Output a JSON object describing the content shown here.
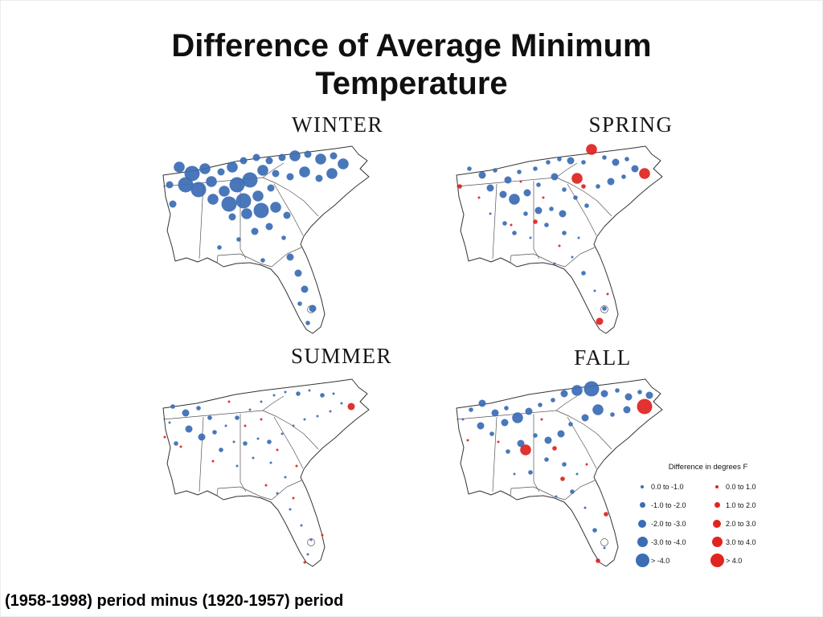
{
  "slide": {
    "title_line1": "Difference of Average Minimum",
    "title_line2": "Temperature",
    "caption": "(1958-1998) period minus (1920-1957) period"
  },
  "colors": {
    "negative_blue": "#3B6DB5",
    "positive_red": "#E02420",
    "map_outline": "#333333"
  },
  "legend": {
    "title": "Difference in degrees F",
    "negative_labels": [
      "0.0 to -1.0",
      "-1.0 to -2.0",
      "-2.0 to -3.0",
      "-3.0 to -4.0",
      "> -4.0"
    ],
    "positive_labels": [
      "0.0 to 1.0",
      "1.0 to 2.0",
      "2.0 to 3.0",
      "3.0 to 4.0",
      "> 4.0"
    ]
  },
  "chart_data": {
    "type": "scatter",
    "title": "Difference of Average Minimum Temperature",
    "units": "degrees F",
    "note": "(1958-1998) period minus (1920-1957) period",
    "point_format": "[x, y, size_bucket_1to5, color: b=negative(blue) r=positive(red)]",
    "panels": [
      {
        "id": "winter",
        "label": "WINTER",
        "points": [
          [
            48,
            38,
            4,
            "b"
          ],
          [
            64,
            46,
            5,
            "b"
          ],
          [
            80,
            40,
            4,
            "b"
          ],
          [
            56,
            60,
            5,
            "b"
          ],
          [
            72,
            66,
            5,
            "b"
          ],
          [
            88,
            56,
            4,
            "b"
          ],
          [
            100,
            44,
            3,
            "b"
          ],
          [
            114,
            38,
            4,
            "b"
          ],
          [
            128,
            30,
            3,
            "b"
          ],
          [
            144,
            26,
            3,
            "b"
          ],
          [
            160,
            30,
            3,
            "b"
          ],
          [
            176,
            26,
            3,
            "b"
          ],
          [
            192,
            24,
            4,
            "b"
          ],
          [
            208,
            22,
            3,
            "b"
          ],
          [
            224,
            28,
            4,
            "b"
          ],
          [
            240,
            24,
            3,
            "b"
          ],
          [
            252,
            34,
            4,
            "b"
          ],
          [
            238,
            46,
            4,
            "b"
          ],
          [
            222,
            52,
            3,
            "b"
          ],
          [
            204,
            44,
            4,
            "b"
          ],
          [
            186,
            50,
            3,
            "b"
          ],
          [
            168,
            46,
            3,
            "b"
          ],
          [
            152,
            42,
            4,
            "b"
          ],
          [
            136,
            54,
            5,
            "b"
          ],
          [
            120,
            60,
            5,
            "b"
          ],
          [
            104,
            68,
            4,
            "b"
          ],
          [
            90,
            78,
            4,
            "b"
          ],
          [
            110,
            84,
            5,
            "b"
          ],
          [
            128,
            80,
            5,
            "b"
          ],
          [
            146,
            74,
            4,
            "b"
          ],
          [
            162,
            64,
            3,
            "b"
          ],
          [
            150,
            92,
            5,
            "b"
          ],
          [
            132,
            96,
            4,
            "b"
          ],
          [
            114,
            100,
            3,
            "b"
          ],
          [
            168,
            88,
            4,
            "b"
          ],
          [
            182,
            98,
            3,
            "b"
          ],
          [
            160,
            112,
            3,
            "b"
          ],
          [
            142,
            118,
            3,
            "b"
          ],
          [
            122,
            128,
            2,
            "b"
          ],
          [
            178,
            126,
            2,
            "b"
          ],
          [
            186,
            150,
            3,
            "b"
          ],
          [
            196,
            170,
            3,
            "b"
          ],
          [
            204,
            190,
            3,
            "b"
          ],
          [
            198,
            208,
            2,
            "b"
          ],
          [
            214,
            214,
            3,
            "b"
          ],
          [
            208,
            232,
            2,
            "b"
          ],
          [
            152,
            154,
            2,
            "b"
          ],
          [
            98,
            138,
            2,
            "b"
          ],
          [
            40,
            84,
            3,
            "b"
          ],
          [
            36,
            60,
            3,
            "b"
          ]
        ]
      },
      {
        "id": "spring",
        "label": "SPRING",
        "points": [
          [
            44,
            40,
            2,
            "b"
          ],
          [
            60,
            48,
            3,
            "b"
          ],
          [
            76,
            42,
            2,
            "b"
          ],
          [
            92,
            54,
            3,
            "b"
          ],
          [
            106,
            44,
            2,
            "b"
          ],
          [
            70,
            64,
            3,
            "b"
          ],
          [
            86,
            72,
            3,
            "b"
          ],
          [
            100,
            78,
            4,
            "b"
          ],
          [
            116,
            70,
            3,
            "b"
          ],
          [
            130,
            60,
            2,
            "b"
          ],
          [
            126,
            40,
            2,
            "b"
          ],
          [
            142,
            32,
            2,
            "b"
          ],
          [
            156,
            28,
            2,
            "b"
          ],
          [
            170,
            30,
            3,
            "b"
          ],
          [
            186,
            32,
            2,
            "b"
          ],
          [
            212,
            26,
            2,
            "b"
          ],
          [
            226,
            32,
            3,
            "b"
          ],
          [
            240,
            28,
            2,
            "b"
          ],
          [
            250,
            40,
            3,
            "b"
          ],
          [
            236,
            50,
            2,
            "b"
          ],
          [
            220,
            56,
            3,
            "b"
          ],
          [
            204,
            62,
            2,
            "b"
          ],
          [
            150,
            50,
            3,
            "b"
          ],
          [
            162,
            66,
            2,
            "b"
          ],
          [
            176,
            76,
            2,
            "b"
          ],
          [
            190,
            86,
            2,
            "b"
          ],
          [
            160,
            96,
            3,
            "b"
          ],
          [
            146,
            90,
            2,
            "b"
          ],
          [
            130,
            92,
            3,
            "b"
          ],
          [
            114,
            96,
            2,
            "b"
          ],
          [
            140,
            110,
            2,
            "b"
          ],
          [
            162,
            120,
            2,
            "b"
          ],
          [
            180,
            126,
            1,
            "b"
          ],
          [
            120,
            126,
            1,
            "b"
          ],
          [
            100,
            120,
            2,
            "b"
          ],
          [
            172,
            150,
            1,
            "b"
          ],
          [
            186,
            170,
            2,
            "b"
          ],
          [
            200,
            192,
            1,
            "b"
          ],
          [
            212,
            214,
            2,
            "b"
          ],
          [
            150,
            158,
            1,
            "b"
          ],
          [
            88,
            108,
            2,
            "b"
          ],
          [
            70,
            96,
            1,
            "b"
          ],
          [
            196,
            16,
            4,
            "r"
          ],
          [
            178,
            52,
            4,
            "r"
          ],
          [
            186,
            62,
            2,
            "r"
          ],
          [
            262,
            46,
            4,
            "r"
          ],
          [
            32,
            62,
            2,
            "r"
          ],
          [
            56,
            76,
            1,
            "r"
          ],
          [
            96,
            110,
            1,
            "r"
          ],
          [
            126,
            106,
            2,
            "r"
          ],
          [
            156,
            136,
            1,
            "r"
          ],
          [
            206,
            230,
            3,
            "r"
          ],
          [
            216,
            196,
            1,
            "r"
          ],
          [
            136,
            76,
            1,
            "r"
          ],
          [
            108,
            56,
            1,
            "r"
          ]
        ]
      },
      {
        "id": "summer",
        "label": "SUMMER",
        "points": [
          [
            40,
            46,
            2,
            "b"
          ],
          [
            56,
            54,
            3,
            "b"
          ],
          [
            72,
            48,
            2,
            "b"
          ],
          [
            86,
            60,
            2,
            "b"
          ],
          [
            60,
            74,
            3,
            "b"
          ],
          [
            76,
            84,
            3,
            "b"
          ],
          [
            92,
            78,
            2,
            "b"
          ],
          [
            106,
            70,
            1,
            "b"
          ],
          [
            120,
            60,
            2,
            "b"
          ],
          [
            136,
            50,
            1,
            "b"
          ],
          [
            150,
            40,
            1,
            "b"
          ],
          [
            166,
            32,
            1,
            "b"
          ],
          [
            180,
            28,
            1,
            "b"
          ],
          [
            196,
            30,
            2,
            "b"
          ],
          [
            210,
            26,
            1,
            "b"
          ],
          [
            226,
            32,
            2,
            "b"
          ],
          [
            240,
            30,
            1,
            "b"
          ],
          [
            250,
            42,
            1,
            "b"
          ],
          [
            236,
            52,
            1,
            "b"
          ],
          [
            220,
            58,
            1,
            "b"
          ],
          [
            204,
            62,
            1,
            "b"
          ],
          [
            190,
            70,
            1,
            "b"
          ],
          [
            176,
            80,
            1,
            "b"
          ],
          [
            160,
            90,
            2,
            "b"
          ],
          [
            146,
            86,
            1,
            "b"
          ],
          [
            130,
            92,
            2,
            "b"
          ],
          [
            116,
            90,
            1,
            "b"
          ],
          [
            100,
            100,
            2,
            "b"
          ],
          [
            140,
            110,
            1,
            "b"
          ],
          [
            162,
            116,
            1,
            "b"
          ],
          [
            120,
            120,
            1,
            "b"
          ],
          [
            180,
            134,
            1,
            "b"
          ],
          [
            170,
            154,
            1,
            "b"
          ],
          [
            186,
            174,
            1,
            "b"
          ],
          [
            200,
            194,
            1,
            "b"
          ],
          [
            212,
            212,
            1,
            "b"
          ],
          [
            208,
            230,
            1,
            "b"
          ],
          [
            44,
            92,
            2,
            "b"
          ],
          [
            36,
            66,
            1,
            "b"
          ],
          [
            262,
            46,
            3,
            "r"
          ],
          [
            30,
            84,
            1,
            "r"
          ],
          [
            50,
            96,
            1,
            "r"
          ],
          [
            90,
            114,
            1,
            "r"
          ],
          [
            130,
            70,
            1,
            "r"
          ],
          [
            150,
            62,
            1,
            "r"
          ],
          [
            170,
            100,
            1,
            "r"
          ],
          [
            194,
            120,
            1,
            "r"
          ],
          [
            156,
            144,
            1,
            "r"
          ],
          [
            190,
            160,
            1,
            "r"
          ],
          [
            204,
            240,
            1,
            "r"
          ],
          [
            110,
            40,
            1,
            "r"
          ],
          [
            226,
            206,
            1,
            "r"
          ]
        ]
      },
      {
        "id": "fall",
        "label": "FALL",
        "points": [
          [
            46,
            50,
            2,
            "b"
          ],
          [
            60,
            42,
            3,
            "b"
          ],
          [
            76,
            54,
            3,
            "b"
          ],
          [
            90,
            48,
            2,
            "b"
          ],
          [
            58,
            70,
            3,
            "b"
          ],
          [
            72,
            80,
            2,
            "b"
          ],
          [
            88,
            66,
            3,
            "b"
          ],
          [
            104,
            60,
            4,
            "b"
          ],
          [
            118,
            52,
            3,
            "b"
          ],
          [
            132,
            44,
            2,
            "b"
          ],
          [
            148,
            38,
            2,
            "b"
          ],
          [
            162,
            30,
            3,
            "b"
          ],
          [
            178,
            26,
            4,
            "b"
          ],
          [
            196,
            24,
            5,
            "b"
          ],
          [
            212,
            30,
            3,
            "b"
          ],
          [
            228,
            26,
            2,
            "b"
          ],
          [
            242,
            34,
            3,
            "b"
          ],
          [
            256,
            28,
            2,
            "b"
          ],
          [
            268,
            32,
            3,
            "b"
          ],
          [
            240,
            50,
            3,
            "b"
          ],
          [
            222,
            56,
            2,
            "b"
          ],
          [
            204,
            50,
            4,
            "b"
          ],
          [
            188,
            60,
            3,
            "b"
          ],
          [
            170,
            68,
            2,
            "b"
          ],
          [
            158,
            80,
            3,
            "b"
          ],
          [
            142,
            88,
            3,
            "b"
          ],
          [
            126,
            82,
            2,
            "b"
          ],
          [
            108,
            92,
            3,
            "b"
          ],
          [
            92,
            102,
            2,
            "b"
          ],
          [
            140,
            112,
            2,
            "b"
          ],
          [
            162,
            118,
            2,
            "b"
          ],
          [
            178,
            130,
            1,
            "b"
          ],
          [
            120,
            128,
            2,
            "b"
          ],
          [
            100,
            130,
            1,
            "b"
          ],
          [
            172,
            152,
            2,
            "b"
          ],
          [
            188,
            172,
            1,
            "b"
          ],
          [
            152,
            158,
            1,
            "b"
          ],
          [
            200,
            200,
            2,
            "b"
          ],
          [
            212,
            222,
            1,
            "b"
          ],
          [
            36,
            62,
            1,
            "b"
          ],
          [
            262,
            46,
            5,
            "r"
          ],
          [
            114,
            100,
            4,
            "r"
          ],
          [
            150,
            98,
            2,
            "r"
          ],
          [
            160,
            136,
            2,
            "r"
          ],
          [
            214,
            180,
            2,
            "r"
          ],
          [
            80,
            90,
            1,
            "r"
          ],
          [
            42,
            88,
            1,
            "r"
          ],
          [
            204,
            238,
            2,
            "r"
          ],
          [
            134,
            62,
            1,
            "r"
          ],
          [
            190,
            118,
            1,
            "r"
          ]
        ]
      }
    ]
  }
}
